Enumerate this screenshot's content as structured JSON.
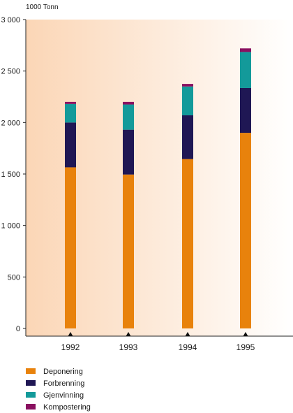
{
  "chart_data": {
    "type": "bar",
    "stacked": true,
    "unit_label": "1000 Tonn",
    "categories": [
      "1992",
      "1993",
      "1994",
      "1995"
    ],
    "series": [
      {
        "name": "Deponering",
        "color": "#e8820c",
        "values": [
          1565,
          1495,
          1645,
          1900
        ]
      },
      {
        "name": "Forbrenning",
        "color": "#1f1754",
        "values": [
          435,
          435,
          425,
          435
        ]
      },
      {
        "name": "Gjenvinning",
        "color": "#139a9a",
        "values": [
          180,
          245,
          280,
          350
        ]
      },
      {
        "name": "Kompostering",
        "color": "#8a1060",
        "values": [
          20,
          25,
          25,
          35
        ]
      }
    ],
    "ylim": [
      0,
      3000
    ],
    "yticks": [
      0,
      500,
      1000,
      1500,
      2000,
      2500,
      3000
    ],
    "ytick_labels": [
      "0",
      "500",
      "1 000",
      "1 500",
      "2 000",
      "2 500",
      "3 000"
    ],
    "legend_position": "bottom-left",
    "grid": false,
    "background_gradient": [
      "#fbd6b6",
      "#ffffff"
    ]
  }
}
